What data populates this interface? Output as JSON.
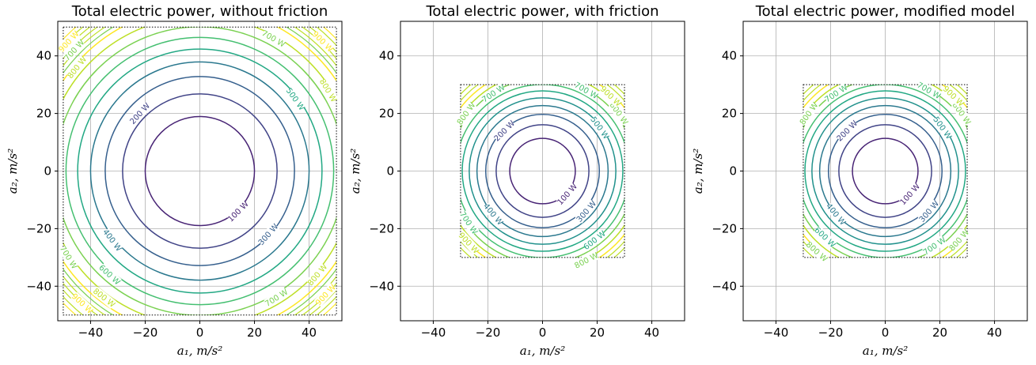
{
  "chart_data": [
    {
      "type": "contour",
      "title": "Total electric power, without friction",
      "xlabel": "a₁, m/s²",
      "ylabel": "a₂, m/s²",
      "xlim": [
        -52,
        52
      ],
      "ylim": [
        -52,
        52
      ],
      "xticks": [
        -40,
        -20,
        0,
        20,
        40
      ],
      "yticks": [
        -40,
        -20,
        0,
        20,
        40
      ],
      "xtick_labels": [
        "−40",
        "−20",
        "0",
        "20",
        "40"
      ],
      "ytick_labels": [
        "−40",
        "−20",
        "0",
        "20",
        "40"
      ],
      "grid": true,
      "region": [
        -50,
        50,
        -50,
        50
      ],
      "power_coefficient": 0.25,
      "levels": [
        100,
        200,
        300,
        400,
        500,
        600,
        700,
        800,
        900
      ],
      "contour_labels": [
        {
          "text": "100 W",
          "x": 14,
          "y": -14
        },
        {
          "text": "200 W",
          "x": -22,
          "y": 20
        },
        {
          "text": "300 W",
          "x": 25,
          "y": -22
        },
        {
          "text": "400 W",
          "x": -32,
          "y": -24
        },
        {
          "text": "500 W",
          "x": 35,
          "y": 25
        },
        {
          "text": "600 W",
          "x": -33,
          "y": -36
        },
        {
          "text": "700 W",
          "x": 27,
          "y": 46
        },
        {
          "text": "700 W",
          "x": -46,
          "y": 42
        },
        {
          "text": "700 W",
          "x": -48,
          "y": -30
        },
        {
          "text": "700 W",
          "x": 28,
          "y": -44
        },
        {
          "text": "800 W",
          "x": -45,
          "y": 36
        },
        {
          "text": "800 W",
          "x": 47,
          "y": 28
        },
        {
          "text": "800 W",
          "x": 43,
          "y": -36
        },
        {
          "text": "800 W",
          "x": -35,
          "y": -44
        },
        {
          "text": "900 W",
          "x": -48,
          "y": 45
        },
        {
          "text": "900 W",
          "x": 45,
          "y": 45
        },
        {
          "text": "900 W",
          "x": 46,
          "y": -43
        },
        {
          "text": "900 W",
          "x": -43,
          "y": -46
        }
      ]
    },
    {
      "type": "contour",
      "title": "Total electric power, with friction",
      "xlabel": "a₁, m/s²",
      "ylabel": "a₂, m/s²",
      "xlim": [
        -52,
        52
      ],
      "ylim": [
        -52,
        52
      ],
      "xticks": [
        -40,
        -20,
        0,
        20,
        40
      ],
      "yticks": [
        -40,
        -20,
        0,
        20,
        40
      ],
      "xtick_labels": [
        "−40",
        "−20",
        "0",
        "20",
        "40"
      ],
      "ytick_labels": [
        "−40",
        "−20",
        "0",
        "20",
        "40"
      ],
      "grid": true,
      "region": [
        -30,
        30,
        -30,
        30
      ],
      "power_coefficient": 0.694,
      "levels": [
        100,
        200,
        300,
        400,
        500,
        600,
        700,
        800,
        900,
        1000
      ],
      "contour_labels": [
        {
          "text": "100 W",
          "x": 9,
          "y": -8
        },
        {
          "text": "200 W",
          "x": -14,
          "y": 14
        },
        {
          "text": "300 W",
          "x": 16,
          "y": -14
        },
        {
          "text": "400 W",
          "x": -18,
          "y": -15
        },
        {
          "text": "500 W",
          "x": 21,
          "y": 15
        },
        {
          "text": "600 W",
          "x": 19,
          "y": -24
        },
        {
          "text": "700 W",
          "x": -18,
          "y": 27
        },
        {
          "text": "700 W",
          "x": 16,
          "y": 28
        },
        {
          "text": "700 W",
          "x": -27,
          "y": -18
        },
        {
          "text": "800 W",
          "x": -28,
          "y": 20
        },
        {
          "text": "800 W",
          "x": 28,
          "y": 20
        },
        {
          "text": "800 W",
          "x": 16,
          "y": -31
        },
        {
          "text": "900 W",
          "x": -27,
          "y": -25
        },
        {
          "text": "900 W",
          "x": 25,
          "y": 26
        }
      ]
    },
    {
      "type": "contour",
      "title": "Total electric power, modified model",
      "xlabel": "a₁, m/s²",
      "ylabel": "a₂, m/s²",
      "xlim": [
        -52,
        52
      ],
      "ylim": [
        -52,
        52
      ],
      "xticks": [
        -40,
        -20,
        0,
        20,
        40
      ],
      "yticks": [
        -40,
        -20,
        0,
        20,
        40
      ],
      "xtick_labels": [
        "−40",
        "−20",
        "0",
        "20",
        "40"
      ],
      "ytick_labels": [
        "−40",
        "−20",
        "0",
        "20",
        "40"
      ],
      "grid": true,
      "region": [
        -30,
        30,
        -30,
        30
      ],
      "power_coefficient": 0.694,
      "levels": [
        100,
        200,
        300,
        400,
        500,
        600,
        700,
        800,
        900,
        1000
      ],
      "contour_labels": [
        {
          "text": "100 W",
          "x": 9,
          "y": -8
        },
        {
          "text": "200 W",
          "x": -14,
          "y": 14
        },
        {
          "text": "300 W",
          "x": 16,
          "y": -14
        },
        {
          "text": "400 W",
          "x": -18,
          "y": -15
        },
        {
          "text": "500 W",
          "x": 21,
          "y": 15
        },
        {
          "text": "600 W",
          "x": -22,
          "y": -23
        },
        {
          "text": "700 W",
          "x": -18,
          "y": 27
        },
        {
          "text": "700 W",
          "x": 16,
          "y": 28
        },
        {
          "text": "700 W",
          "x": 18,
          "y": -26
        },
        {
          "text": "800 W",
          "x": -28,
          "y": 20
        },
        {
          "text": "800 W",
          "x": 28,
          "y": 20
        },
        {
          "text": "800 W",
          "x": -25,
          "y": -28
        },
        {
          "text": "800 W",
          "x": 27,
          "y": -24
        },
        {
          "text": "900 W",
          "x": 25,
          "y": 26
        }
      ]
    }
  ],
  "colors": {
    "axes": "#000000",
    "grid": "#b0b0b0",
    "viridis": [
      "#440154",
      "#482475",
      "#414487",
      "#355f8d",
      "#2a788e",
      "#21918c",
      "#22a884",
      "#44bf70",
      "#7ad151",
      "#bddf26",
      "#fde725"
    ]
  }
}
